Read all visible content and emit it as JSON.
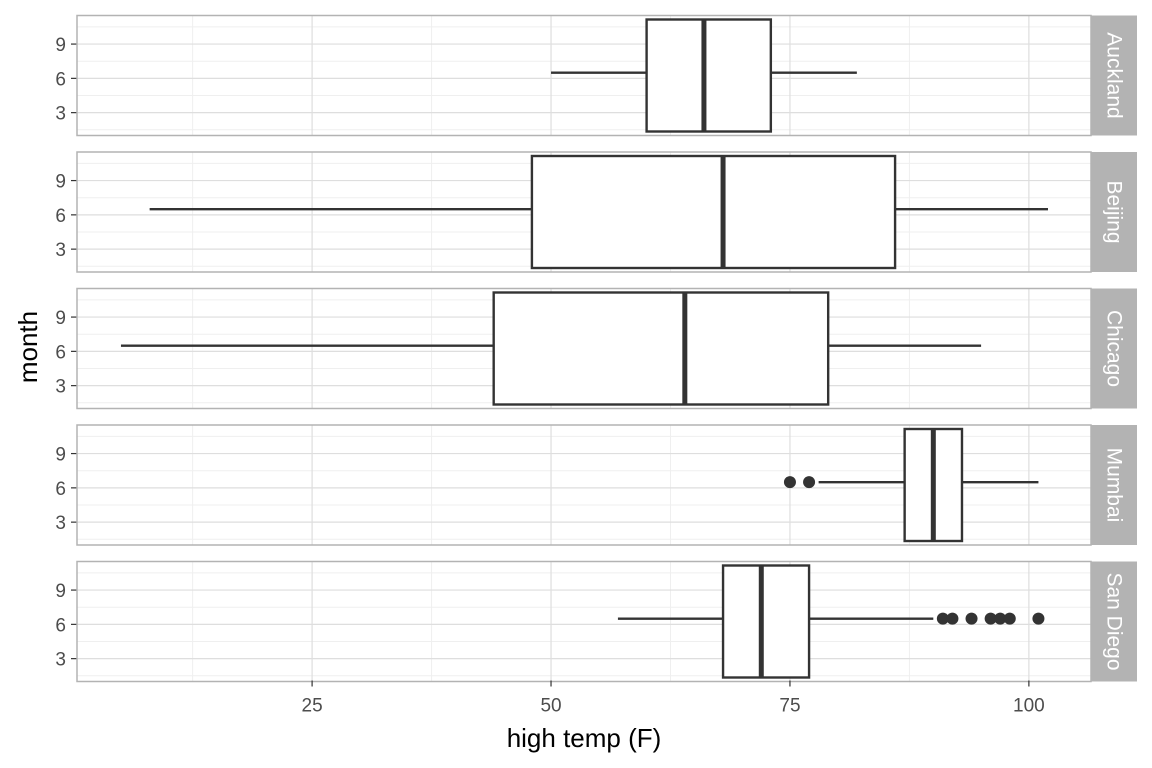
{
  "chart_data": {
    "type": "boxplot",
    "orientation": "horizontal",
    "facet": "rows",
    "xlabel": "high temp (F)",
    "ylabel": "month",
    "x_ticks": [
      25,
      50,
      75,
      100
    ],
    "x_tick_labels": [
      "25",
      "50",
      "75",
      "100"
    ],
    "xlim": [
      0.4,
      106.5
    ],
    "y_ticks": [
      3,
      6,
      9
    ],
    "y_tick_labels": [
      "3",
      "6",
      "9"
    ],
    "ylim": [
      1.0,
      11.5
    ],
    "box_y_center": 6.5,
    "grid": true,
    "theme": "light",
    "panels": [
      {
        "city": "Auckland",
        "min": 50,
        "q1": 60,
        "median": 66,
        "q3": 73,
        "max": 82,
        "outliers": []
      },
      {
        "city": "Beijing",
        "min": 8,
        "q1": 48,
        "median": 68,
        "q3": 86,
        "max": 102,
        "outliers": []
      },
      {
        "city": "Chicago",
        "min": 5,
        "q1": 44,
        "median": 64,
        "q3": 79,
        "max": 95,
        "outliers": []
      },
      {
        "city": "Mumbai",
        "min": 78,
        "q1": 87,
        "median": 90,
        "q3": 93,
        "max": 101,
        "outliers": [
          75,
          77
        ]
      },
      {
        "city": "San Diego",
        "min": 57,
        "q1": 68,
        "median": 72,
        "q3": 77,
        "max": 90,
        "outliers": [
          91,
          92,
          94,
          96,
          97,
          98,
          101
        ]
      }
    ]
  },
  "colors": {
    "panel_border": "#b3b3b3",
    "grid_major": "#dedede",
    "grid_minor": "#efefef",
    "strip_fill": "#b3b3b3",
    "strip_text": "#ffffff",
    "box_stroke": "#333333",
    "box_fill": "#ffffff",
    "outlier": "#333333",
    "tick_text": "#4d4d4d"
  }
}
